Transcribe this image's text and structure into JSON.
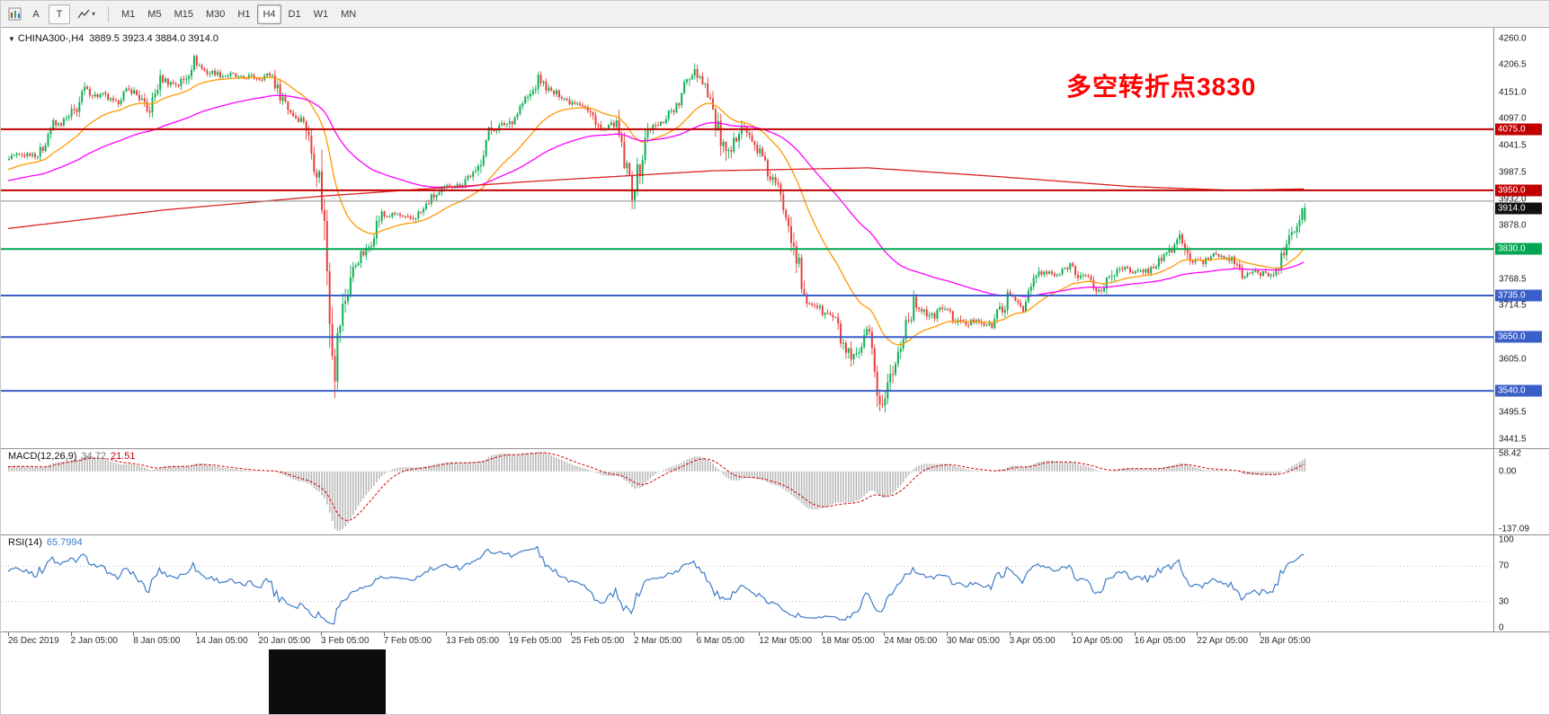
{
  "toolbar": {
    "tools": {
      "annotate_a": "A",
      "annotate_t": "T"
    },
    "timeframes": [
      "M1",
      "M5",
      "M15",
      "M30",
      "H1",
      "H4",
      "D1",
      "W1",
      "MN"
    ],
    "active_timeframe": "H4"
  },
  "chart": {
    "symbol_title": "CHINA300-,H4",
    "ohlc_text": "3889.5 3923.4 3884.0 3914.0",
    "annotation_text": "多空转折点3830",
    "annotation_color": "#FF0000",
    "price_ticks": [
      "4260.0",
      "4206.5",
      "4151.0",
      "4097.0",
      "4041.5",
      "3987.5",
      "3932.0",
      "3878.0",
      "3768.5",
      "3714.5",
      "3605.0",
      "3495.5",
      "3441.5"
    ],
    "hlines": [
      {
        "label": "4075.0",
        "price": 4075.0,
        "color": "#c00000",
        "width": 2
      },
      {
        "label": "3950.0",
        "price": 3950.0,
        "color": "#c00000",
        "width": 2
      },
      {
        "label": "",
        "price": 3928.0,
        "color": "#8a8a8a",
        "width": 1
      },
      {
        "label": "3830.0",
        "price": 3830.0,
        "color": "#00a651",
        "width": 2
      },
      {
        "label": "3735.0",
        "price": 3735.0,
        "color": "#3a5fc8",
        "width": 2
      },
      {
        "label": "3650.0",
        "price": 3650.0,
        "color": "#3a5fc8",
        "width": 2
      },
      {
        "label": "3540.0",
        "price": 3540.0,
        "color": "#3a5fc8",
        "width": 2
      }
    ],
    "current_price": {
      "label": "3914.0",
      "price": 3914.0,
      "bg": "#111111"
    },
    "time_labels": [
      "26 Dec 2019",
      "2 Jan 05:00",
      "8 Jan 05:00",
      "14 Jan 05:00",
      "20 Jan 05:00",
      "3 Feb 05:00",
      "7 Feb 05:00",
      "13 Feb 05:00",
      "19 Feb 05:00",
      "25 Feb 05:00",
      "2 Mar 05:00",
      "6 Mar 05:00",
      "12 Mar 05:00",
      "18 Mar 05:00",
      "24 Mar 05:00",
      "30 Mar 05:00",
      "3 Apr 05:00",
      "10 Apr 05:00",
      "16 Apr 05:00",
      "22 Apr 05:00",
      "28 Apr 05:00"
    ]
  },
  "indicators": {
    "macd": {
      "name": "MACD(12,26,9)",
      "value_main": "34.72",
      "value_signal": "21.51",
      "axis_top": "58.42",
      "axis_zero": "0.00",
      "axis_bottom": "-137.09",
      "fast": 12,
      "slow": 26,
      "signal": 9,
      "histogram_color": "#b9b9b9",
      "signal_color": "#d40000"
    },
    "rsi": {
      "name": "RSI(14)",
      "value": "65.7994",
      "period": 14,
      "axis": [
        "100",
        "70",
        "30",
        "0"
      ],
      "levels": [
        70,
        30
      ],
      "line_color": "#3e7bc8"
    }
  },
  "chart_data": {
    "type": "candlestick",
    "symbol": "CHINA300-",
    "timeframe": "H4",
    "title": "CHINA300-,H4 3889.5 3923.4 3884.0 3914.0",
    "last_ohlc": {
      "open": 3889.5,
      "high": 3923.4,
      "low": 3884.0,
      "close": 3914.0
    },
    "price_axis_range": [
      3430,
      4275
    ],
    "bars_per_day": 6,
    "bars_per_time_label": 24,
    "daily_closes": [
      4025,
      4022,
      4082,
      4096,
      4152,
      4144,
      4129,
      4160,
      4112,
      4180,
      4163,
      4212,
      4190,
      4186,
      4181,
      4181,
      4185,
      4115,
      4091,
      3977,
      3612,
      3783,
      3828,
      3899,
      3899,
      3890,
      3926,
      3955,
      3963,
      3987,
      4076,
      4085,
      4124,
      4174,
      4149,
      4134,
      4123,
      4073,
      4085,
      3940,
      4070,
      4093,
      4131,
      4207,
      4138,
      4006,
      4090,
      4032,
      3970,
      3895,
      3726,
      3708,
      3684,
      3589,
      3653,
      3505,
      3623,
      3722,
      3691,
      3710,
      3674,
      3686,
      3672,
      3734,
      3713,
      3784,
      3775,
      3796,
      3769,
      3742,
      3796,
      3781,
      3787,
      3813,
      3852,
      3795,
      3818,
      3817,
      3779,
      3782,
      3776,
      3848,
      3914
    ],
    "moving_averages": [
      {
        "type": "ema",
        "period": 30,
        "color": "#ff9800"
      },
      {
        "type": "ema",
        "period": 90,
        "color": "#ff00ff"
      },
      {
        "type": "anchors",
        "color": "#dd2222",
        "points": [
          [
            0,
            3872
          ],
          [
            60,
            3910
          ],
          [
            120,
            3938
          ],
          [
            200,
            3968
          ],
          [
            270,
            3990
          ],
          [
            330,
            3996
          ],
          [
            380,
            3978
          ],
          [
            430,
            3958
          ],
          [
            470,
            3950
          ],
          [
            497,
            3953
          ]
        ]
      }
    ],
    "up_color": "#0faf54",
    "down_color": "#e8403d"
  }
}
